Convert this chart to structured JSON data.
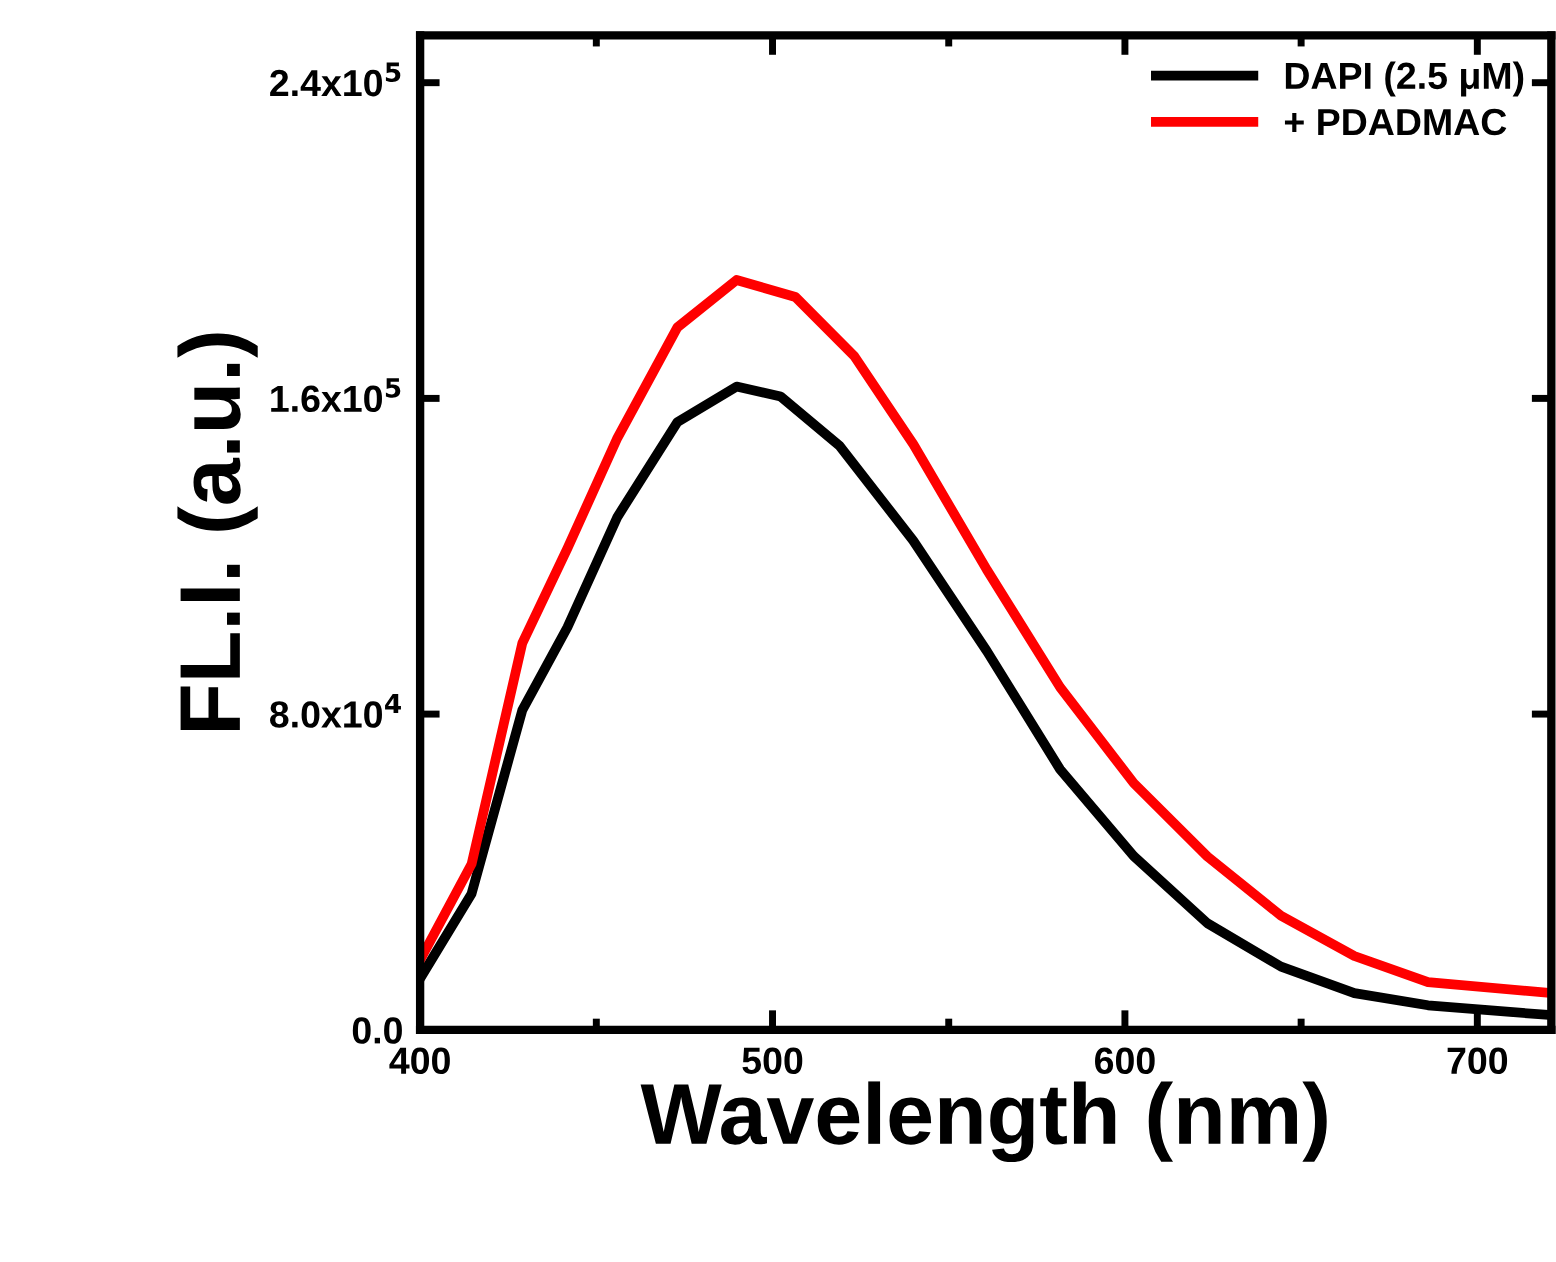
{
  "chart_data": {
    "type": "line",
    "xlabel": "Wavelength (nm)",
    "ylabel": "FL.I. (a.u.)",
    "xlim": [
      400,
      721
    ],
    "xticks": [
      400,
      500,
      600,
      700
    ],
    "ylim": [
      0,
      252000
    ],
    "yticks": [
      {
        "value": 0,
        "label": "0.0"
      },
      {
        "value": 80000,
        "label": "8.0x10$^{4}$"
      },
      {
        "value": 160000,
        "label": "1.6x10$^{5}$"
      },
      {
        "value": 240000,
        "label": "2.4x10$^{5}$"
      }
    ],
    "grid": false,
    "legend": "top right",
    "marker": "none",
    "line_style": "solid",
    "series": [
      {
        "name": "DAPI (2.5 μM)",
        "color": "#000000",
        "x": [
          400,
          414.6,
          429,
          441.8,
          456,
          473,
          489.8,
          502.3,
          519,
          539.9,
          560.8,
          581.6,
          602.5,
          623.4,
          644.3,
          665.1,
          686,
          721
        ],
        "values": [
          13000,
          34500,
          81000,
          102000,
          130000,
          154000,
          163000,
          160500,
          148000,
          124000,
          96000,
          66000,
          44000,
          27000,
          16000,
          9300,
          6200,
          3700
        ]
      },
      {
        "name": "+ PDADMAC",
        "color": "#ff0000",
        "x": [
          400,
          414.6,
          429,
          441.8,
          456,
          473,
          489.8,
          506.5,
          523.2,
          540,
          560.8,
          581.6,
          602.5,
          623.4,
          644.3,
          665.1,
          686,
          721
        ],
        "values": [
          17700,
          42000,
          98000,
          122000,
          150000,
          178000,
          190000,
          185700,
          170700,
          148300,
          116600,
          86800,
          62500,
          43900,
          28900,
          18700,
          12100,
          9300
        ]
      }
    ]
  }
}
